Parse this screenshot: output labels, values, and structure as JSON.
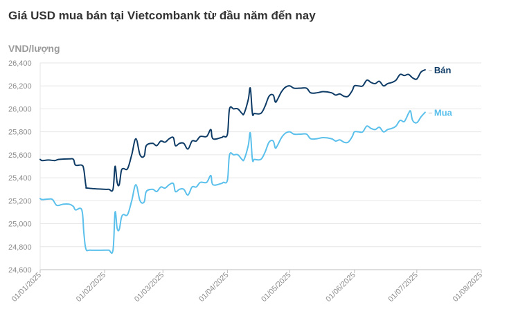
{
  "chart_data": {
    "type": "line",
    "title": "Giá USD mua bán tại Vietcombank từ đầu năm đến nay",
    "ylabel": "VND/lượng",
    "ylim": [
      24600,
      26400
    ],
    "yticks": [
      24600,
      24800,
      25000,
      25200,
      25400,
      25600,
      25800,
      26000,
      26200,
      26400
    ],
    "ytick_labels": [
      "24,600",
      "24,800",
      "25,000",
      "25,200",
      "25,400",
      "25,600",
      "25,800",
      "26,000",
      "26,200",
      "26,400"
    ],
    "xlim": [
      "2025-01-01",
      "2025-08-01"
    ],
    "xticks": [
      "2025-01-01",
      "2025-02-01",
      "2025-03-01",
      "2025-04-01",
      "2025-05-01",
      "2025-06-01",
      "2025-07-01",
      "2025-08-01"
    ],
    "xtick_labels": [
      "01/01/2025",
      "01/02/2025",
      "01/03/2025",
      "01/04/2025",
      "01/05/2025",
      "01/06/2025",
      "01/07/2025",
      "01/08/2025"
    ],
    "grid": true,
    "legend": "end-of-line labels",
    "series": [
      {
        "name": "Bán",
        "color": "#0d3b66",
        "points": [
          [
            "2025-01-01",
            25560
          ],
          [
            "2025-01-02",
            25550
          ],
          [
            "2025-01-05",
            25555
          ],
          [
            "2025-01-08",
            25550
          ],
          [
            "2025-01-10",
            25560
          ],
          [
            "2025-01-15",
            25565
          ],
          [
            "2025-01-17",
            25560
          ],
          [
            "2025-01-18",
            25510
          ],
          [
            "2025-01-21",
            25510
          ],
          [
            "2025-01-22",
            25470
          ],
          [
            "2025-01-23",
            25330
          ],
          [
            "2025-01-24",
            25310
          ],
          [
            "2025-02-01",
            25300
          ],
          [
            "2025-02-03",
            25300
          ],
          [
            "2025-02-05",
            25300
          ],
          [
            "2025-02-06",
            25500
          ],
          [
            "2025-02-07",
            25360
          ],
          [
            "2025-02-08",
            25340
          ],
          [
            "2025-02-09",
            25460
          ],
          [
            "2025-02-10",
            25480
          ],
          [
            "2025-02-12",
            25480
          ],
          [
            "2025-02-14",
            25600
          ],
          [
            "2025-02-16",
            25740
          ],
          [
            "2025-02-18",
            25600
          ],
          [
            "2025-02-20",
            25590
          ],
          [
            "2025-02-21",
            25680
          ],
          [
            "2025-02-24",
            25700
          ],
          [
            "2025-02-26",
            25680
          ],
          [
            "2025-02-28",
            25720
          ],
          [
            "2025-03-02",
            25710
          ],
          [
            "2025-03-04",
            25740
          ],
          [
            "2025-03-06",
            25750
          ],
          [
            "2025-03-07",
            25680
          ],
          [
            "2025-03-09",
            25700
          ],
          [
            "2025-03-11",
            25700
          ],
          [
            "2025-03-13",
            25650
          ],
          [
            "2025-03-15",
            25720
          ],
          [
            "2025-03-17",
            25720
          ],
          [
            "2025-03-19",
            25760
          ],
          [
            "2025-03-22",
            25760
          ],
          [
            "2025-03-24",
            25820
          ],
          [
            "2025-03-25",
            25740
          ],
          [
            "2025-03-29",
            25750
          ],
          [
            "2025-03-30",
            25760
          ],
          [
            "2025-04-01",
            25780
          ],
          [
            "2025-04-02",
            26000
          ],
          [
            "2025-04-04",
            26000
          ],
          [
            "2025-04-06",
            26000
          ],
          [
            "2025-04-08",
            25960
          ],
          [
            "2025-04-09",
            25960
          ],
          [
            "2025-04-11",
            26080
          ],
          [
            "2025-04-12",
            26180
          ],
          [
            "2025-04-13",
            25960
          ],
          [
            "2025-04-14",
            25960
          ],
          [
            "2025-04-17",
            25960
          ],
          [
            "2025-04-19",
            26020
          ],
          [
            "2025-04-21",
            26110
          ],
          [
            "2025-04-23",
            26120
          ],
          [
            "2025-04-24",
            26060
          ],
          [
            "2025-04-25",
            26080
          ],
          [
            "2025-04-27",
            26150
          ],
          [
            "2025-04-29",
            26190
          ],
          [
            "2025-05-01",
            26200
          ],
          [
            "2025-05-03",
            26180
          ],
          [
            "2025-05-06",
            26180
          ],
          [
            "2025-05-09",
            26180
          ],
          [
            "2025-05-11",
            26140
          ],
          [
            "2025-05-14",
            26140
          ],
          [
            "2025-05-17",
            26150
          ],
          [
            "2025-05-21",
            26140
          ],
          [
            "2025-05-23",
            26120
          ],
          [
            "2025-05-25",
            26130
          ],
          [
            "2025-05-27",
            26110
          ],
          [
            "2025-05-29",
            26110
          ],
          [
            "2025-05-31",
            26160
          ],
          [
            "2025-06-01",
            26200
          ],
          [
            "2025-06-03",
            26200
          ],
          [
            "2025-06-05",
            26200
          ],
          [
            "2025-06-07",
            26250
          ],
          [
            "2025-06-09",
            26230
          ],
          [
            "2025-06-11",
            26220
          ],
          [
            "2025-06-13",
            26240
          ],
          [
            "2025-06-15",
            26200
          ],
          [
            "2025-06-17",
            26220
          ],
          [
            "2025-06-19",
            26230
          ],
          [
            "2025-06-21",
            26250
          ],
          [
            "2025-06-23",
            26300
          ],
          [
            "2025-06-25",
            26290
          ],
          [
            "2025-06-27",
            26300
          ],
          [
            "2025-06-29",
            26270
          ],
          [
            "2025-07-01",
            26260
          ],
          [
            "2025-07-03",
            26320
          ],
          [
            "2025-07-05",
            26340
          ]
        ]
      },
      {
        "name": "Mua",
        "color": "#5bc0eb",
        "points": [
          [
            "2025-01-01",
            25220
          ],
          [
            "2025-01-02",
            25210
          ],
          [
            "2025-01-05",
            25215
          ],
          [
            "2025-01-07",
            25210
          ],
          [
            "2025-01-09",
            25160
          ],
          [
            "2025-01-12",
            25170
          ],
          [
            "2025-01-15",
            25170
          ],
          [
            "2025-01-17",
            25150
          ],
          [
            "2025-01-18",
            25120
          ],
          [
            "2025-01-21",
            25120
          ],
          [
            "2025-01-22",
            24920
          ],
          [
            "2025-01-23",
            24780
          ],
          [
            "2025-01-25",
            24770
          ],
          [
            "2025-02-01",
            24770
          ],
          [
            "2025-02-03",
            24770
          ],
          [
            "2025-02-05",
            24770
          ],
          [
            "2025-02-06",
            25100
          ],
          [
            "2025-02-07",
            24960
          ],
          [
            "2025-02-08",
            24950
          ],
          [
            "2025-02-09",
            25050
          ],
          [
            "2025-02-10",
            25080
          ],
          [
            "2025-02-12",
            25080
          ],
          [
            "2025-02-14",
            25200
          ],
          [
            "2025-02-16",
            25340
          ],
          [
            "2025-02-18",
            25200
          ],
          [
            "2025-02-20",
            25190
          ],
          [
            "2025-02-21",
            25280
          ],
          [
            "2025-02-24",
            25300
          ],
          [
            "2025-02-26",
            25280
          ],
          [
            "2025-02-28",
            25320
          ],
          [
            "2025-03-02",
            25310
          ],
          [
            "2025-03-04",
            25340
          ],
          [
            "2025-03-06",
            25350
          ],
          [
            "2025-03-07",
            25280
          ],
          [
            "2025-03-09",
            25300
          ],
          [
            "2025-03-11",
            25300
          ],
          [
            "2025-03-13",
            25250
          ],
          [
            "2025-03-15",
            25320
          ],
          [
            "2025-03-17",
            25320
          ],
          [
            "2025-03-19",
            25360
          ],
          [
            "2025-03-22",
            25360
          ],
          [
            "2025-03-24",
            25420
          ],
          [
            "2025-03-25",
            25340
          ],
          [
            "2025-03-29",
            25350
          ],
          [
            "2025-03-30",
            25360
          ],
          [
            "2025-04-01",
            25380
          ],
          [
            "2025-04-02",
            25600
          ],
          [
            "2025-04-04",
            25600
          ],
          [
            "2025-04-06",
            25600
          ],
          [
            "2025-04-08",
            25560
          ],
          [
            "2025-04-09",
            25560
          ],
          [
            "2025-04-11",
            25680
          ],
          [
            "2025-04-12",
            25790
          ],
          [
            "2025-04-13",
            25560
          ],
          [
            "2025-04-14",
            25560
          ],
          [
            "2025-04-17",
            25560
          ],
          [
            "2025-04-19",
            25620
          ],
          [
            "2025-04-21",
            25710
          ],
          [
            "2025-04-23",
            25720
          ],
          [
            "2025-04-24",
            25660
          ],
          [
            "2025-04-25",
            25680
          ],
          [
            "2025-04-27",
            25750
          ],
          [
            "2025-04-29",
            25790
          ],
          [
            "2025-05-01",
            25800
          ],
          [
            "2025-05-03",
            25780
          ],
          [
            "2025-05-06",
            25780
          ],
          [
            "2025-05-09",
            25780
          ],
          [
            "2025-05-11",
            25740
          ],
          [
            "2025-05-14",
            25740
          ],
          [
            "2025-05-17",
            25750
          ],
          [
            "2025-05-21",
            25740
          ],
          [
            "2025-05-23",
            25720
          ],
          [
            "2025-05-25",
            25730
          ],
          [
            "2025-05-27",
            25710
          ],
          [
            "2025-05-29",
            25710
          ],
          [
            "2025-05-31",
            25760
          ],
          [
            "2025-06-01",
            25800
          ],
          [
            "2025-06-03",
            25800
          ],
          [
            "2025-06-05",
            25800
          ],
          [
            "2025-06-07",
            25850
          ],
          [
            "2025-06-09",
            25830
          ],
          [
            "2025-06-11",
            25820
          ],
          [
            "2025-06-13",
            25840
          ],
          [
            "2025-06-15",
            25800
          ],
          [
            "2025-06-17",
            25820
          ],
          [
            "2025-06-19",
            25830
          ],
          [
            "2025-06-21",
            25850
          ],
          [
            "2025-06-23",
            25900
          ],
          [
            "2025-06-25",
            25890
          ],
          [
            "2025-06-27",
            25960
          ],
          [
            "2025-06-28",
            25980
          ],
          [
            "2025-06-29",
            25900
          ],
          [
            "2025-07-01",
            25880
          ],
          [
            "2025-07-03",
            25930
          ],
          [
            "2025-07-05",
            25970
          ]
        ]
      }
    ]
  }
}
